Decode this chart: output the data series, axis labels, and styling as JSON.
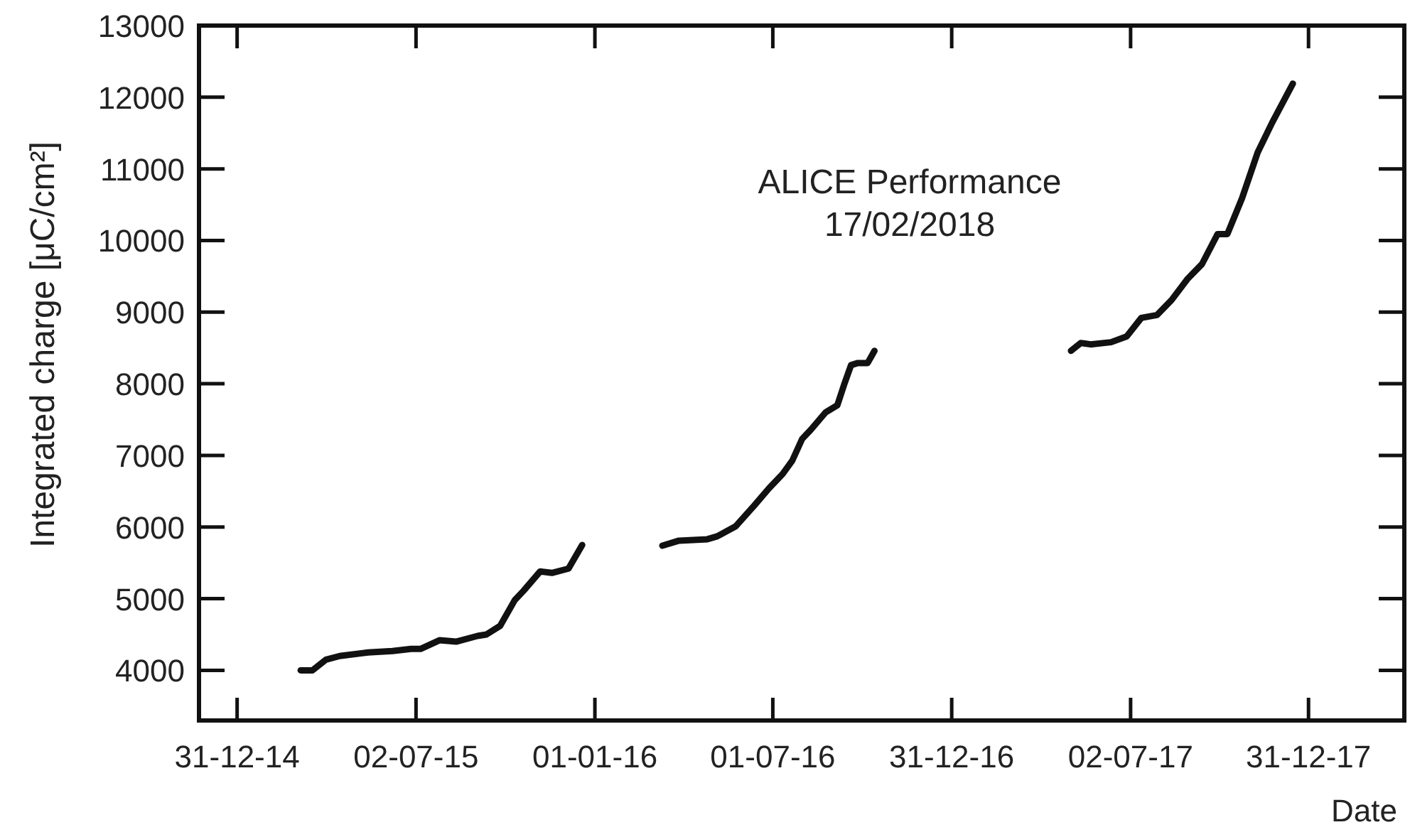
{
  "chart_data": {
    "type": "line",
    "xlabel": "Date",
    "ylabel": "Integrated charge [μC/cm²]",
    "annotations": [
      "ALICE Performance",
      "17/02/2018"
    ],
    "x": [
      "2015-03-06",
      "2015-03-18",
      "2015-04-01",
      "2015-04-15",
      "2015-05-14",
      "2015-06-08",
      "2015-06-27",
      "2015-07-07",
      "2015-07-26",
      "2015-08-12",
      "2015-09-03",
      "2015-09-12",
      "2015-09-26",
      "2015-10-11",
      "2015-10-20",
      "2015-11-06",
      "2015-11-18",
      "2015-12-05",
      "2015-12-19",
      "2016-02-01",
      "2016-03-10",
      "2016-03-27",
      "2016-04-25",
      "2016-05-05",
      "2016-05-24",
      "2016-06-12",
      "2016-06-27",
      "2016-07-11",
      "2016-07-21",
      "2016-07-31",
      "2016-08-09",
      "2016-08-24",
      "2016-09-05",
      "2016-09-12",
      "2016-09-19",
      "2016-09-26",
      "2016-10-06",
      "2016-10-13",
      "2017-01-20",
      "2017-05-02",
      "2017-05-12",
      "2017-05-22",
      "2017-06-12",
      "2017-06-28",
      "2017-07-13",
      "2017-07-29",
      "2017-08-13",
      "2017-08-29",
      "2017-09-13",
      "2017-09-29",
      "2017-10-09",
      "2017-10-24",
      "2017-11-09",
      "2017-11-24",
      "2017-12-15"
    ],
    "series": [
      {
        "color": "#111111",
        "values": [
          4000,
          4000,
          4150,
          4200,
          4250,
          4270,
          4300,
          4300,
          4420,
          4400,
          4480,
          4500,
          4620,
          4980,
          5110,
          5380,
          5360,
          5420,
          5750,
          null,
          5740,
          5810,
          5830,
          5870,
          6010,
          6300,
          6540,
          6740,
          6930,
          7230,
          7360,
          7600,
          7700,
          7990,
          8260,
          8290,
          8290,
          8460,
          null,
          8460,
          8570,
          8550,
          8580,
          8660,
          8920,
          8960,
          9170,
          9460,
          9670,
          10090,
          10090,
          10590,
          11230,
          11650,
          12190
        ]
      }
    ],
    "xlim": [
      "2014-11-22",
      "2018-04-08"
    ],
    "xticks": [
      {
        "value": "2014-12-31",
        "label": "31-12-14"
      },
      {
        "value": "2015-07-02",
        "label": "02-07-15"
      },
      {
        "value": "2016-01-01",
        "label": "01-01-16"
      },
      {
        "value": "2016-07-01",
        "label": "01-07-16"
      },
      {
        "value": "2016-12-31",
        "label": "31-12-16"
      },
      {
        "value": "2017-07-02",
        "label": "02-07-17"
      },
      {
        "value": "2017-12-31",
        "label": "31-12-17"
      }
    ],
    "ylim": [
      3300,
      13000
    ],
    "yticks": [
      4000,
      5000,
      6000,
      7000,
      8000,
      9000,
      10000,
      11000,
      12000,
      13000
    ],
    "grid": false,
    "marker": "none",
    "line_style": "solid"
  }
}
